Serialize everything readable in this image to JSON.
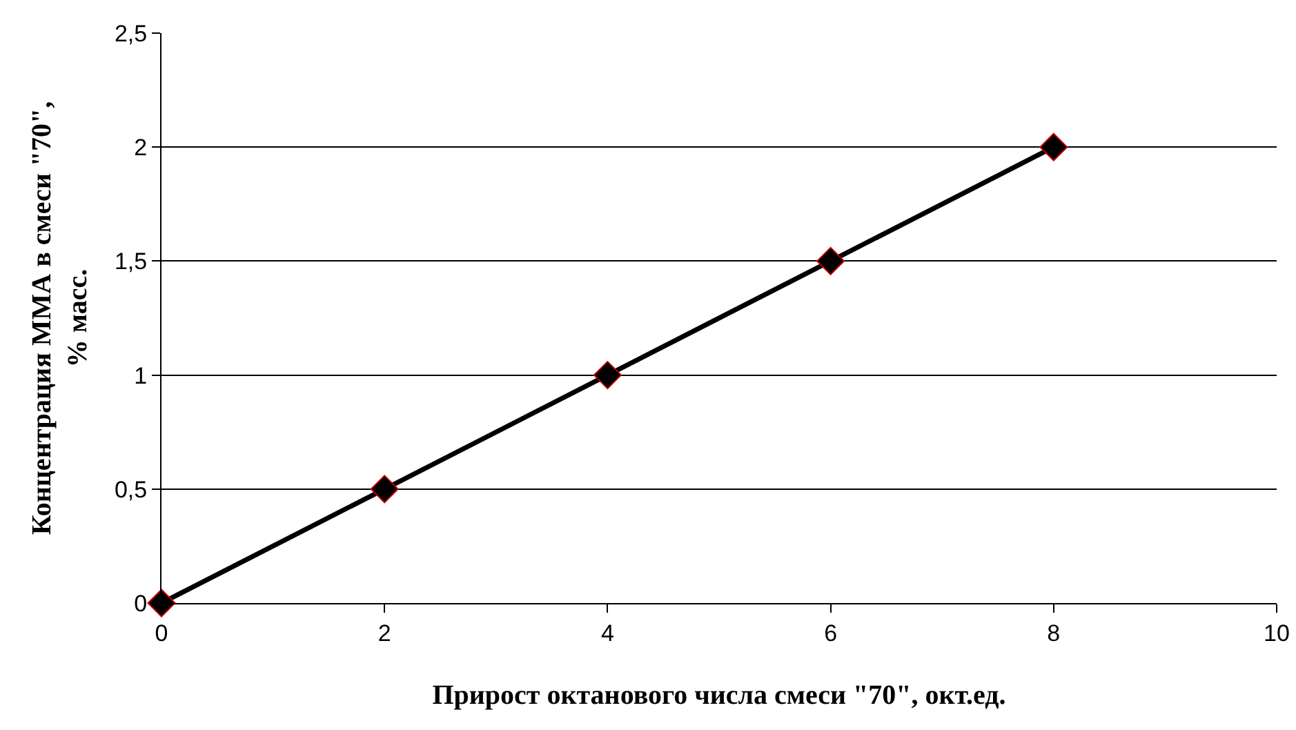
{
  "chart_data": {
    "type": "line",
    "xlabel": "Прирост октанового числа смеси \"70\", окт.ед.",
    "ylabel": "Концентрация ММА в смеси \"70\",\n% масс.",
    "x": [
      0,
      2,
      4,
      6,
      8
    ],
    "series": [
      {
        "color": "#000000",
        "values": [
          0,
          0.5,
          1,
          1.5,
          2
        ]
      }
    ],
    "xlim": [
      0,
      10
    ],
    "xticks": [
      0,
      2,
      4,
      6,
      8,
      10
    ],
    "ylim": [
      0,
      2.5
    ],
    "yticks": [
      0,
      {
        "value": 0.5,
        "label": "0,5"
      },
      1,
      {
        "value": 1.5,
        "label": "1,5"
      },
      2,
      {
        "value": 2.5,
        "label": "2,5"
      }
    ],
    "grid": "y",
    "marker": "diamond",
    "line_style": "solid"
  }
}
